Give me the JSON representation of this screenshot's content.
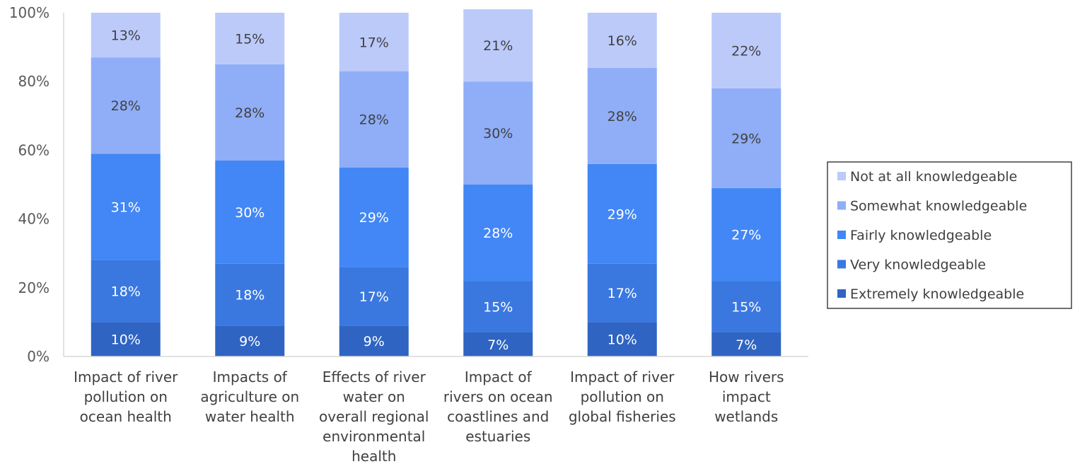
{
  "chart_data": {
    "type": "bar",
    "stacked": true,
    "percent": true,
    "categories": [
      [
        "Impact of river",
        "pollution on",
        "ocean health"
      ],
      [
        "Impacts of",
        "agriculture on",
        "water health"
      ],
      [
        "Effects of river",
        "water on",
        "overall regional",
        "environmental",
        "health"
      ],
      [
        "Impact of",
        "rivers on ocean",
        "coastlines and",
        "estuaries"
      ],
      [
        "Impact of river",
        "pollution on",
        "global fisheries"
      ],
      [
        "How rivers",
        "impact",
        "wetlands"
      ]
    ],
    "series": [
      {
        "name": "Extremely knowledgeable",
        "color": "#2f64c2",
        "values": [
          10,
          9,
          9,
          7,
          10,
          7
        ],
        "labels": [
          "10%",
          "9%",
          "9%",
          "7%",
          "10%",
          "7%"
        ]
      },
      {
        "name": "Very knowledgeable",
        "color": "#3a78e0",
        "values": [
          18,
          18,
          17,
          15,
          17,
          15
        ],
        "labels": [
          "18%",
          "18%",
          "17%",
          "15%",
          "17%",
          "15%"
        ]
      },
      {
        "name": "Fairly knowledgeable",
        "color": "#4287f5",
        "values": [
          31,
          30,
          29,
          28,
          29,
          27
        ],
        "labels": [
          "31%",
          "30%",
          "29%",
          "28%",
          "29%",
          "27%"
        ]
      },
      {
        "name": "Somewhat knowledgeable",
        "color": "#8faef7",
        "values": [
          28,
          28,
          28,
          30,
          28,
          29
        ],
        "labels": [
          "28%",
          "28%",
          "28%",
          "30%",
          "28%",
          "29%"
        ]
      },
      {
        "name": "Not at all knowledgeable",
        "color": "#bccafa",
        "values": [
          13,
          15,
          17,
          21,
          16,
          22
        ],
        "labels": [
          "13%",
          "15%",
          "17%",
          "21%",
          "16%",
          "22%"
        ]
      }
    ],
    "yticks": [
      "0%",
      "20%",
      "40%",
      "60%",
      "80%",
      "100%"
    ],
    "ylim": [
      0,
      100
    ],
    "legend_position": "right",
    "grid": false
  }
}
